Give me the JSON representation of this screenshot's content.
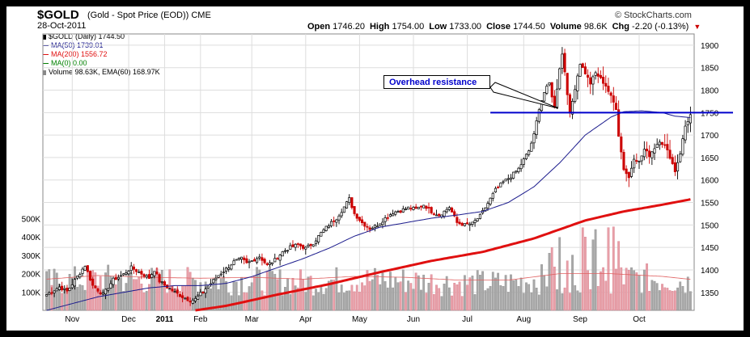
{
  "header": {
    "symbol": "$GOLD",
    "description": "(Gold - Spot Price (EOD)) CME",
    "date": "28-Oct-2011",
    "credit": "© StockCharts.com",
    "ohlc_items": [
      {
        "label": "Open",
        "value": "1746.20"
      },
      {
        "label": "High",
        "value": "1754.00"
      },
      {
        "label": "Low",
        "value": "1733.00"
      },
      {
        "label": "Close",
        "value": "1744.50"
      },
      {
        "label": "Volume",
        "value": "98.6K"
      },
      {
        "label": "Chg",
        "value": "-2.20 (-0.13%)"
      }
    ]
  },
  "legend": [
    {
      "text": "$GOLD (Daily) 1744.50",
      "color": "#000000",
      "kind": "icon"
    },
    {
      "text": "MA(50) 1739.01",
      "color": "#1a1a8c",
      "kind": "line"
    },
    {
      "text": "MA(200) 1556.72",
      "color": "#e01010",
      "kind": "line"
    },
    {
      "text": "MA(0) 0.00",
      "color": "#008000",
      "kind": "line"
    },
    {
      "text": "Volume 98.63K, EMA(60) 168.97K",
      "color": "#888888",
      "kind": "icon"
    }
  ],
  "annotation": {
    "text": "Overhead resistance",
    "resistance_level": 1750
  },
  "chart_data": {
    "type": "line",
    "x_ticks": [
      "Nov",
      "Dec",
      "2011",
      "Feb",
      "Mar",
      "Apr",
      "May",
      "Jun",
      "Jul",
      "Aug",
      "Sep",
      "Oct"
    ],
    "x_tick_index": [
      10,
      32,
      46,
      60,
      80,
      101,
      122,
      143,
      164,
      186,
      208,
      231
    ],
    "y_ticks": [
      1350,
      1400,
      1450,
      1500,
      1550,
      1600,
      1650,
      1700,
      1750,
      1800,
      1850,
      1900
    ],
    "ylim": [
      1310,
      1925
    ],
    "volume_ticks": [
      "100K",
      "200K",
      "300K",
      "400K",
      "500K"
    ],
    "volume_tick_values": [
      100000,
      200000,
      300000,
      400000,
      500000
    ],
    "volume_max": 520000,
    "n_days": 252,
    "close_anchors": [
      [
        0,
        1345
      ],
      [
        5,
        1362
      ],
      [
        8,
        1352
      ],
      [
        12,
        1385
      ],
      [
        15,
        1410
      ],
      [
        18,
        1365
      ],
      [
        22,
        1345
      ],
      [
        26,
        1378
      ],
      [
        30,
        1390
      ],
      [
        33,
        1405
      ],
      [
        36,
        1395
      ],
      [
        40,
        1382
      ],
      [
        42,
        1400
      ],
      [
        44,
        1375
      ],
      [
        47,
        1362
      ],
      [
        50,
        1350
      ],
      [
        53,
        1340
      ],
      [
        56,
        1332
      ],
      [
        58,
        1335
      ],
      [
        61,
        1352
      ],
      [
        64,
        1370
      ],
      [
        67,
        1388
      ],
      [
        70,
        1402
      ],
      [
        73,
        1418
      ],
      [
        76,
        1425
      ],
      [
        78,
        1414
      ],
      [
        80,
        1420
      ],
      [
        83,
        1430
      ],
      [
        86,
        1410
      ],
      [
        89,
        1422
      ],
      [
        92,
        1440
      ],
      [
        95,
        1450
      ],
      [
        98,
        1456
      ],
      [
        101,
        1448
      ],
      [
        104,
        1460
      ],
      [
        107,
        1482
      ],
      [
        110,
        1500
      ],
      [
        113,
        1515
      ],
      [
        116,
        1540
      ],
      [
        118,
        1558
      ],
      [
        120,
        1525
      ],
      [
        123,
        1505
      ],
      [
        126,
        1492
      ],
      [
        129,
        1500
      ],
      [
        132,
        1515
      ],
      [
        135,
        1528
      ],
      [
        138,
        1532
      ],
      [
        141,
        1538
      ],
      [
        144,
        1535
      ],
      [
        147,
        1545
      ],
      [
        150,
        1530
      ],
      [
        153,
        1522
      ],
      [
        155,
        1530
      ],
      [
        157,
        1540
      ],
      [
        160,
        1505
      ],
      [
        163,
        1500
      ],
      [
        166,
        1503
      ],
      [
        169,
        1520
      ],
      [
        172,
        1548
      ],
      [
        175,
        1578
      ],
      [
        178,
        1595
      ],
      [
        181,
        1608
      ],
      [
        184,
        1625
      ],
      [
        186,
        1645
      ],
      [
        188,
        1665
      ],
      [
        190,
        1700
      ],
      [
        192,
        1760
      ],
      [
        194,
        1795
      ],
      [
        196,
        1815
      ],
      [
        198,
        1760
      ],
      [
        200,
        1850
      ],
      [
        201,
        1880
      ],
      [
        202,
        1842
      ],
      [
        204,
        1745
      ],
      [
        206,
        1805
      ],
      [
        208,
        1860
      ],
      [
        210,
        1838
      ],
      [
        212,
        1815
      ],
      [
        214,
        1838
      ],
      [
        216,
        1825
      ],
      [
        218,
        1810
      ],
      [
        220,
        1785
      ],
      [
        222,
        1760
      ],
      [
        223,
        1700
      ],
      [
        225,
        1625
      ],
      [
        227,
        1605
      ],
      [
        229,
        1650
      ],
      [
        231,
        1640
      ],
      [
        233,
        1668
      ],
      [
        235,
        1655
      ],
      [
        237,
        1672
      ],
      [
        239,
        1688
      ],
      [
        241,
        1676
      ],
      [
        243,
        1652
      ],
      [
        245,
        1620
      ],
      [
        247,
        1660
      ],
      [
        249,
        1720
      ],
      [
        251,
        1744.5
      ]
    ],
    "ma50_anchors": [
      [
        0,
        1310
      ],
      [
        10,
        1325
      ],
      [
        20,
        1340
      ],
      [
        30,
        1350
      ],
      [
        40,
        1360
      ],
      [
        50,
        1365
      ],
      [
        60,
        1365
      ],
      [
        70,
        1370
      ],
      [
        80,
        1385
      ],
      [
        90,
        1405
      ],
      [
        100,
        1425
      ],
      [
        110,
        1448
      ],
      [
        120,
        1475
      ],
      [
        130,
        1495
      ],
      [
        140,
        1505
      ],
      [
        150,
        1515
      ],
      [
        160,
        1522
      ],
      [
        170,
        1530
      ],
      [
        180,
        1550
      ],
      [
        190,
        1585
      ],
      [
        200,
        1638
      ],
      [
        210,
        1700
      ],
      [
        220,
        1740
      ],
      [
        225,
        1752
      ],
      [
        232,
        1754
      ],
      [
        240,
        1750
      ],
      [
        245,
        1742
      ],
      [
        251,
        1739
      ]
    ],
    "ma200_anchors": [
      [
        58,
        1310
      ],
      [
        70,
        1320
      ],
      [
        90,
        1345
      ],
      [
        110,
        1368
      ],
      [
        130,
        1395
      ],
      [
        150,
        1420
      ],
      [
        170,
        1440
      ],
      [
        190,
        1470
      ],
      [
        210,
        1510
      ],
      [
        225,
        1530
      ],
      [
        240,
        1545
      ],
      [
        251,
        1557
      ]
    ],
    "volume_ema_anchors": [
      [
        0,
        170000
      ],
      [
        20,
        190000
      ],
      [
        40,
        180000
      ],
      [
        60,
        175000
      ],
      [
        80,
        180000
      ],
      [
        100,
        170000
      ],
      [
        120,
        185000
      ],
      [
        140,
        180000
      ],
      [
        160,
        165000
      ],
      [
        180,
        165000
      ],
      [
        200,
        200000
      ],
      [
        220,
        200000
      ],
      [
        240,
        185000
      ],
      [
        251,
        169000
      ]
    ]
  }
}
